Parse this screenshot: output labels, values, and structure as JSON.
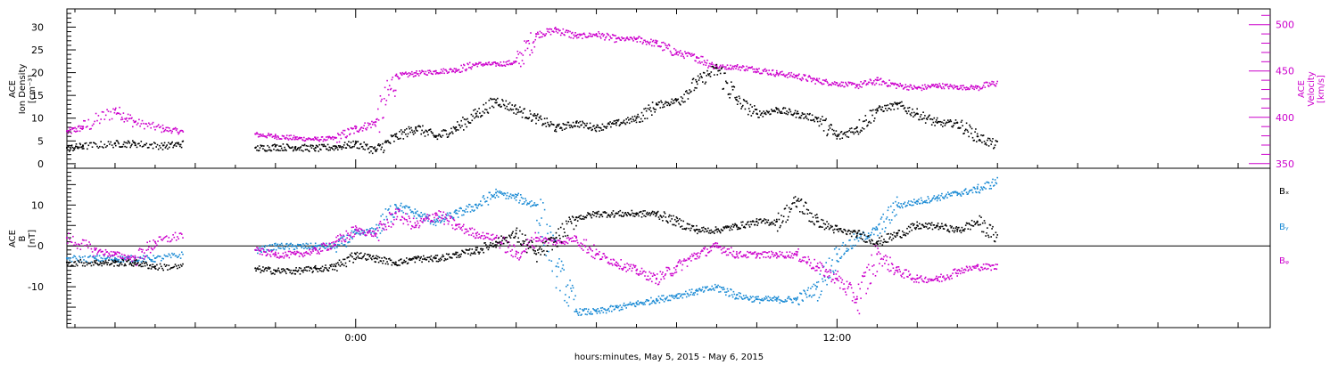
{
  "colors": {
    "black": "#000000",
    "magenta": "#cc00cc",
    "blue": "#1a8ad4"
  },
  "figure": {
    "xlabel": "hours:minutes, May  5, 2015 - May  6, 2015",
    "x_range_hours": [
      -7.2,
      22.8
    ],
    "x_ticks": [
      {
        "hour": 0,
        "label": "0:00"
      },
      {
        "hour": 12,
        "label": "12:00"
      }
    ]
  },
  "chart_data": [
    {
      "type": "scatter",
      "name": "ACE density and velocity",
      "ylabel_left": [
        "ACE",
        "Ion Density",
        "[cm⁻³]"
      ],
      "ylabel_right": [
        "ACE",
        "Velocity",
        "[km/s]"
      ],
      "ylim_left": [
        -1,
        34
      ],
      "yticks_left": [
        0,
        5,
        10,
        15,
        20,
        25,
        30
      ],
      "ylim_right": [
        345,
        517
      ],
      "yticks_right": [
        350,
        400,
        450,
        500
      ],
      "series": [
        {
          "name": "Ion Density",
          "axis": "left",
          "color": "black",
          "x": [
            -7.2,
            -6.8,
            -6.0,
            -5.5,
            -4.8,
            -4.3,
            -3.8,
            -3.0,
            -2.5,
            -2.0,
            -1.5,
            -1.0,
            -0.5,
            0.0,
            0.5,
            1.0,
            1.5,
            2.0,
            2.5,
            3.0,
            3.5,
            4.0,
            4.5,
            5.0,
            5.5,
            6.0,
            6.5,
            7.0,
            7.5,
            8.0,
            8.5,
            9.0,
            9.5,
            10.0,
            10.5,
            11.0,
            11.5,
            12.0,
            12.5,
            13.0,
            13.5,
            14.0,
            14.5,
            15.0,
            15.5,
            16.0
          ],
          "y": [
            3.5,
            4,
            4.5,
            4.5,
            4,
            4.5,
            null,
            null,
            3.5,
            3.8,
            3.7,
            3.5,
            3.8,
            4.5,
            3,
            6,
            8,
            6,
            8,
            11,
            14,
            12,
            10,
            8,
            9,
            8,
            9,
            10,
            13,
            14,
            18,
            21,
            14,
            11,
            12,
            11,
            10,
            6,
            8,
            12,
            13,
            11,
            9,
            9,
            6,
            4
          ]
        },
        {
          "name": "Velocity",
          "axis": "right",
          "color": "magenta",
          "x": [
            -7.2,
            -6.8,
            -6.0,
            -5.5,
            -4.8,
            -4.3,
            -3.8,
            -3.0,
            -2.5,
            -2.0,
            -1.5,
            -1.0,
            -0.5,
            0.0,
            0.5,
            1.0,
            1.5,
            2.0,
            2.5,
            3.0,
            3.5,
            4.0,
            4.5,
            5.0,
            5.5,
            6.0,
            6.5,
            7.0,
            7.5,
            8.0,
            8.5,
            9.0,
            9.5,
            10.0,
            10.5,
            11.0,
            11.5,
            12.0,
            12.5,
            13.0,
            13.5,
            14.0,
            14.5,
            15.0,
            15.5,
            16.0
          ],
          "y": [
            385,
            390,
            408,
            395,
            388,
            385,
            null,
            null,
            382,
            380,
            378,
            377,
            378,
            388,
            395,
            445,
            448,
            450,
            452,
            458,
            458,
            460,
            490,
            495,
            488,
            490,
            485,
            485,
            480,
            470,
            465,
            455,
            455,
            452,
            448,
            445,
            440,
            437,
            435,
            440,
            435,
            432,
            435,
            433,
            433,
            438
          ]
        }
      ]
    },
    {
      "type": "scatter",
      "name": "ACE magnetic field",
      "ylabel": [
        "ACE",
        "B",
        "[nT]"
      ],
      "ylim": [
        -20,
        19
      ],
      "yticks": [
        -10,
        0,
        10
      ],
      "legend": [
        "Bₓ",
        "Bᵧ",
        "Bᵩ"
      ],
      "series": [
        {
          "name": "Bₓ",
          "color": "black",
          "x": [
            -7.2,
            -6.5,
            -6.0,
            -5.5,
            -5.0,
            -4.3,
            -3.8,
            -3.0,
            -2.5,
            -2.0,
            -1.5,
            -1.0,
            -0.5,
            0.0,
            0.5,
            1.0,
            1.5,
            2.0,
            2.5,
            3.0,
            3.5,
            4.0,
            4.5,
            5.0,
            5.5,
            6.0,
            6.5,
            7.0,
            7.5,
            8.0,
            8.5,
            9.0,
            9.5,
            10.0,
            10.5,
            11.0,
            11.5,
            12.0,
            12.5,
            13.0,
            13.5,
            14.0,
            14.5,
            15.0,
            15.5,
            16.0
          ],
          "y": [
            -4,
            -4,
            -4,
            -4,
            -5,
            -5,
            null,
            null,
            -5.5,
            -6,
            -6,
            -5.5,
            -5,
            -2,
            -3,
            -4,
            -3,
            -3,
            -2,
            -1,
            1,
            3,
            -2,
            2,
            7,
            8,
            8,
            8,
            8,
            6,
            4,
            4,
            5,
            6,
            6,
            11,
            6,
            4,
            3,
            1,
            3,
            5,
            5,
            4,
            6,
            2
          ]
        },
        {
          "name": "Bᵧ",
          "color": "blue",
          "x": [
            -7.2,
            -6.5,
            -6.0,
            -5.5,
            -5.0,
            -4.3,
            -3.8,
            -3.0,
            -2.5,
            -2.0,
            -1.5,
            -1.0,
            -0.5,
            0.0,
            0.5,
            1.0,
            1.5,
            2.0,
            2.5,
            3.0,
            3.5,
            4.0,
            4.5,
            5.0,
            5.5,
            6.0,
            6.5,
            7.0,
            7.5,
            8.0,
            8.5,
            9.0,
            9.5,
            10.0,
            10.5,
            11.0,
            11.5,
            12.0,
            12.5,
            13.0,
            13.5,
            14.0,
            14.5,
            15.0,
            15.5,
            16.0
          ],
          "y": [
            -3,
            -3,
            -3,
            -3,
            -3,
            -2,
            null,
            null,
            -1,
            0,
            0,
            0,
            0,
            3,
            4,
            10,
            8,
            6,
            8,
            10,
            13,
            12,
            10,
            -5,
            -16,
            -16,
            -15,
            -14,
            -13,
            -12,
            -11,
            -10,
            -12,
            -13,
            -13,
            -13,
            -10,
            -2,
            2,
            4,
            10,
            11,
            12,
            13,
            14,
            16
          ]
        },
        {
          "name": "Bᵩ",
          "color": "magenta",
          "x": [
            -7.2,
            -6.5,
            -6.0,
            -5.5,
            -5.0,
            -4.3,
            -3.8,
            -3.0,
            -2.5,
            -2.0,
            -1.5,
            -1.0,
            -0.5,
            0.0,
            0.5,
            1.0,
            1.5,
            2.0,
            2.5,
            3.0,
            3.5,
            4.0,
            4.5,
            5.0,
            5.5,
            6.0,
            6.5,
            7.0,
            7.5,
            8.0,
            8.5,
            9.0,
            9.5,
            10.0,
            10.5,
            11.0,
            11.5,
            12.0,
            12.5,
            13.0,
            13.5,
            14.0,
            14.5,
            15.0,
            15.5,
            16.0
          ],
          "y": [
            2,
            -1,
            -2,
            -3,
            1,
            3,
            null,
            null,
            -1,
            -2,
            -2,
            -1,
            1,
            4,
            3,
            8,
            5,
            8,
            5,
            3,
            2,
            -2,
            2,
            1,
            2,
            -2,
            -4,
            -6,
            -8,
            -5,
            -2,
            0,
            -2,
            -2,
            -2,
            -2,
            -5,
            -8,
            -13,
            -2,
            -6,
            -8,
            -8,
            -6,
            -5,
            -5
          ]
        }
      ]
    }
  ]
}
